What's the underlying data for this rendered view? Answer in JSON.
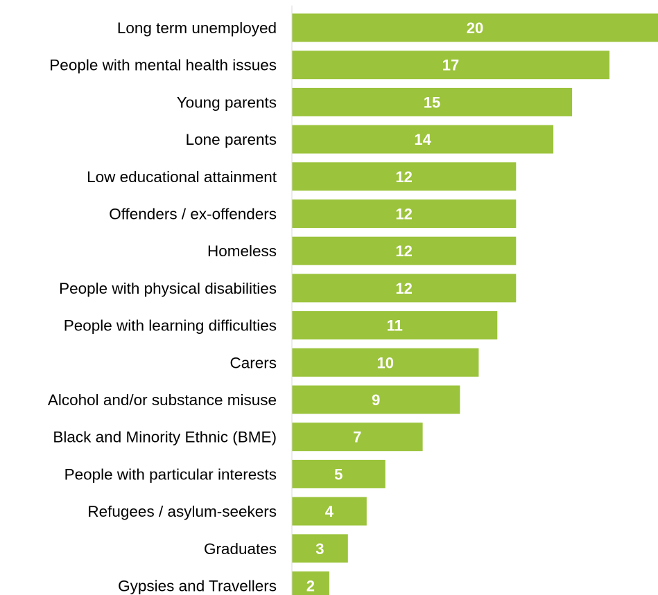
{
  "chart_data": {
    "type": "bar",
    "orientation": "horizontal",
    "title": "",
    "xlabel": "",
    "ylabel": "",
    "categories": [
      "Long term unemployed",
      "People with mental health issues",
      "Young parents",
      "Lone parents",
      "Low educational attainment",
      "Offenders / ex-offenders",
      "Homeless",
      "People with physical disabilities",
      "People with learning difficulties",
      "Carers",
      "Alcohol and/or substance misuse",
      "Black and Minority Ethnic (BME)",
      "People with particular interests",
      "Refugees / asylum-seekers",
      "Graduates",
      "Gypsies and Travellers"
    ],
    "values": [
      20,
      17,
      15,
      14,
      12,
      12,
      12,
      12,
      11,
      10,
      9,
      7,
      5,
      4,
      3,
      2
    ],
    "data_labels": [
      "20",
      "17",
      "15",
      "14",
      "12",
      "12",
      "12",
      "12",
      "11",
      "10",
      "9",
      "7",
      "5",
      "4",
      "3",
      "2"
    ],
    "xlim": [
      0,
      19.6
    ],
    "grid": false,
    "legend": "none",
    "colors": {
      "bar": "#9bc33b",
      "axis": "#d9d9d9",
      "label_text": "#000000",
      "value_text": "#ffffff"
    }
  }
}
